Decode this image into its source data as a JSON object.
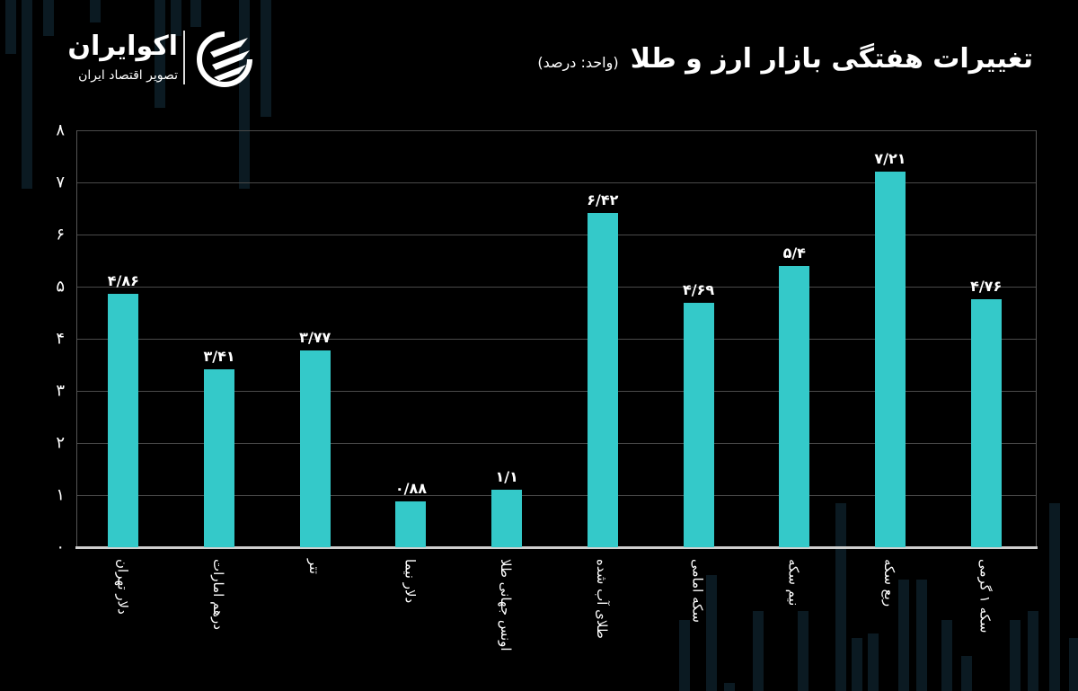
{
  "brand": {
    "name": "اکوایران",
    "tagline": "تصویر اقتصاد ایران"
  },
  "header": {
    "title": "تغییرات هفتگی بازار ارز و طلا",
    "unit": "(واحد: درصد)"
  },
  "colors": {
    "bar": "#34c9c9",
    "background": "#000000",
    "grid": "#4a4a4a"
  },
  "chart_data": {
    "type": "bar",
    "title": "تغییرات هفتگی بازار ارز و طلا",
    "subtitle": "(واحد: درصد)",
    "xlabel": "",
    "ylabel": "درصد",
    "ylim": [
      0,
      8
    ],
    "yticks": [
      0,
      1,
      2,
      3,
      4,
      5,
      6,
      7,
      8
    ],
    "ytick_labels": [
      "۰",
      "۱",
      "۲",
      "۳",
      "۴",
      "۵",
      "۶",
      "۷",
      "۸"
    ],
    "grid": true,
    "legend": "none",
    "categories": [
      "دلار تهران",
      "درهم امارات",
      "تتر",
      "دلار نیما",
      "اونس جهانی طلا",
      "طلای آب شده",
      "سکه امامی",
      "نیم سکه",
      "ربع سکه",
      "سکه ۱ گرمی"
    ],
    "values": [
      4.86,
      3.41,
      3.77,
      0.88,
      1.1,
      6.42,
      4.69,
      5.4,
      7.21,
      4.76
    ],
    "value_labels": [
      "۴/۸۶",
      "۳/۴۱",
      "۳/۷۷",
      "۰/۸۸",
      "۱/۱",
      "۶/۴۲",
      "۴/۶۹",
      "۵/۴",
      "۷/۲۱",
      "۴/۷۶"
    ]
  }
}
